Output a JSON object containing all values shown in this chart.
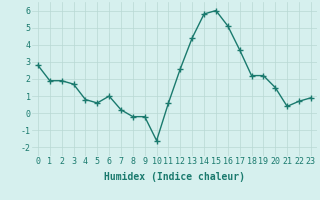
{
  "x": [
    0,
    1,
    2,
    3,
    4,
    5,
    6,
    7,
    8,
    9,
    10,
    11,
    12,
    13,
    14,
    15,
    16,
    17,
    18,
    19,
    20,
    21,
    22,
    23
  ],
  "y": [
    2.8,
    1.9,
    1.9,
    1.7,
    0.8,
    0.6,
    1.0,
    0.2,
    -0.2,
    -0.2,
    -1.6,
    0.6,
    2.6,
    4.4,
    5.8,
    6.0,
    5.1,
    3.7,
    2.2,
    2.2,
    1.5,
    0.4,
    0.7,
    0.9
  ],
  "line_color": "#1a7a6e",
  "marker": "+",
  "marker_size": 4,
  "marker_linewidth": 1.0,
  "bg_color": "#d6f0ee",
  "grid_color": "#b8d8d4",
  "xlabel": "Humidex (Indice chaleur)",
  "xlabel_fontsize": 7,
  "tick_fontsize": 6,
  "ylim": [
    -2.5,
    6.5
  ],
  "xlim": [
    -0.5,
    23.5
  ],
  "yticks": [
    -2,
    -1,
    0,
    1,
    2,
    3,
    4,
    5,
    6
  ],
  "xticks": [
    0,
    1,
    2,
    3,
    4,
    5,
    6,
    7,
    8,
    9,
    10,
    11,
    12,
    13,
    14,
    15,
    16,
    17,
    18,
    19,
    20,
    21,
    22,
    23
  ],
  "linewidth": 1.0
}
